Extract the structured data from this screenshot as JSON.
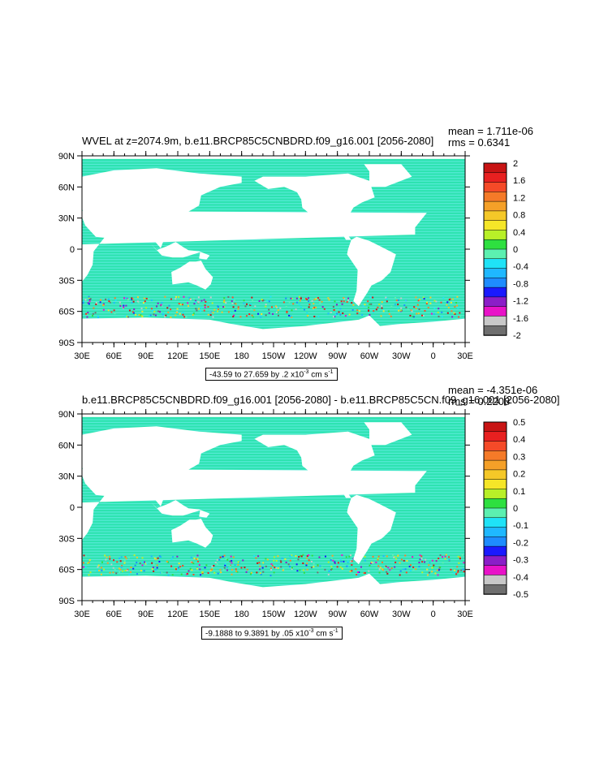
{
  "colors": {
    "ocean_fill": "#2de3b0",
    "ocean_alt": "#7cf0f7",
    "land_fill": "#ffffff",
    "frame": "#000000",
    "scale": [
      "#6f6f6f",
      "#c8c8c8",
      "#e812c8",
      "#8b1ec8",
      "#1a1aff",
      "#1e8cff",
      "#1fb8ff",
      "#1fe3f7",
      "#5cf0b0",
      "#2ee040",
      "#b8f028",
      "#f5e628",
      "#f5c828",
      "#f5a028",
      "#f57a28",
      "#f54a28",
      "#e82020",
      "#c81414"
    ]
  },
  "chart_data": [
    {
      "type": "heatmap",
      "title": "WVEL at z=2074.9m, b.e11.BRCP85C5CNBDRD.f09_g16.001 [2056-2080]",
      "mean_label": "mean = 1.711e-06",
      "rms_label": "rms = 0.6341",
      "x_ticks": [
        "30E",
        "60E",
        "90E",
        "120E",
        "150E",
        "180",
        "150W",
        "120W",
        "90W",
        "60W",
        "30W",
        "0",
        "30E"
      ],
      "y_ticks": [
        "90N",
        "60N",
        "30N",
        "0",
        "30S",
        "60S",
        "90S"
      ],
      "colorbar_levels": [
        "2",
        "1.6",
        "1.2",
        "0.8",
        "0.4",
        "0",
        "-0.4",
        "-0.8",
        "-1.2",
        "-1.6",
        "-2"
      ],
      "range_text": "-43.59 to 27.659 by .2 x10",
      "range_exp": "-3",
      "range_unit": " cm s",
      "range_unit_exp": "-1"
    },
    {
      "type": "heatmap",
      "title": "b.e11.BRCP85C5CNBDRD.f09_g16.001 [2056-2080] - b.e11.BRCP85C5CN.f09_g16.001 [2056-2080]",
      "mean_label": "mean = -4.351e-06",
      "rms_label": "rms = 0.2208",
      "x_ticks": [
        "30E",
        "60E",
        "90E",
        "120E",
        "150E",
        "180",
        "150W",
        "120W",
        "90W",
        "60W",
        "30W",
        "0",
        "30E"
      ],
      "y_ticks": [
        "90N",
        "60N",
        "30N",
        "0",
        "30S",
        "60S",
        "90S"
      ],
      "colorbar_levels": [
        "0.5",
        "0.4",
        "0.3",
        "0.2",
        "0.1",
        "0",
        "-0.1",
        "-0.2",
        "-0.3",
        "-0.4",
        "-0.5"
      ],
      "range_text": "-9.1888 to 9.3891 by .05 x10",
      "range_exp": "-3",
      "range_unit": " cm s",
      "range_unit_exp": "-1"
    }
  ]
}
